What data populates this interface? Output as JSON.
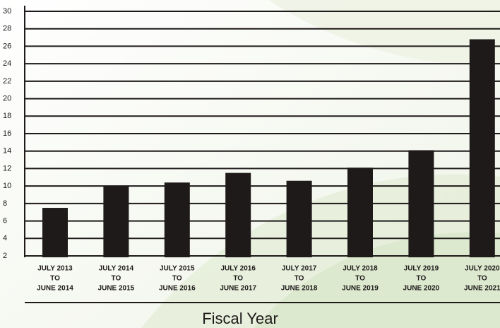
{
  "chart_data": {
    "type": "bar",
    "x_label": "Fiscal Year",
    "categories": [
      [
        "JULY 2013",
        "TO",
        "JUNE 2014"
      ],
      [
        "JULY 2014",
        "TO",
        "JUNE 2015"
      ],
      [
        "JULY 2015",
        "TO",
        "JUNE 2016"
      ],
      [
        "JULY 2016",
        "TO",
        "JUNE 2017"
      ],
      [
        "JULY 2017",
        "TO",
        "JUNE 2018"
      ],
      [
        "JULY 2018",
        "TO",
        "JUNE 2019"
      ],
      [
        "JULY 2019",
        "TO",
        "JUNE 2020"
      ],
      [
        "JULY 2020",
        "TO",
        "JUNE 2021"
      ]
    ],
    "values": [
      7.5,
      10.0,
      10.4,
      11.5,
      10.6,
      12.1,
      14.1,
      26.8
    ],
    "color": "#1e1a1a",
    "ylim": [
      2,
      30
    ],
    "yticks": [
      2,
      4,
      6,
      8,
      10,
      12,
      14,
      16,
      18,
      20,
      22,
      24,
      26,
      28,
      30
    ],
    "grid": true
  }
}
